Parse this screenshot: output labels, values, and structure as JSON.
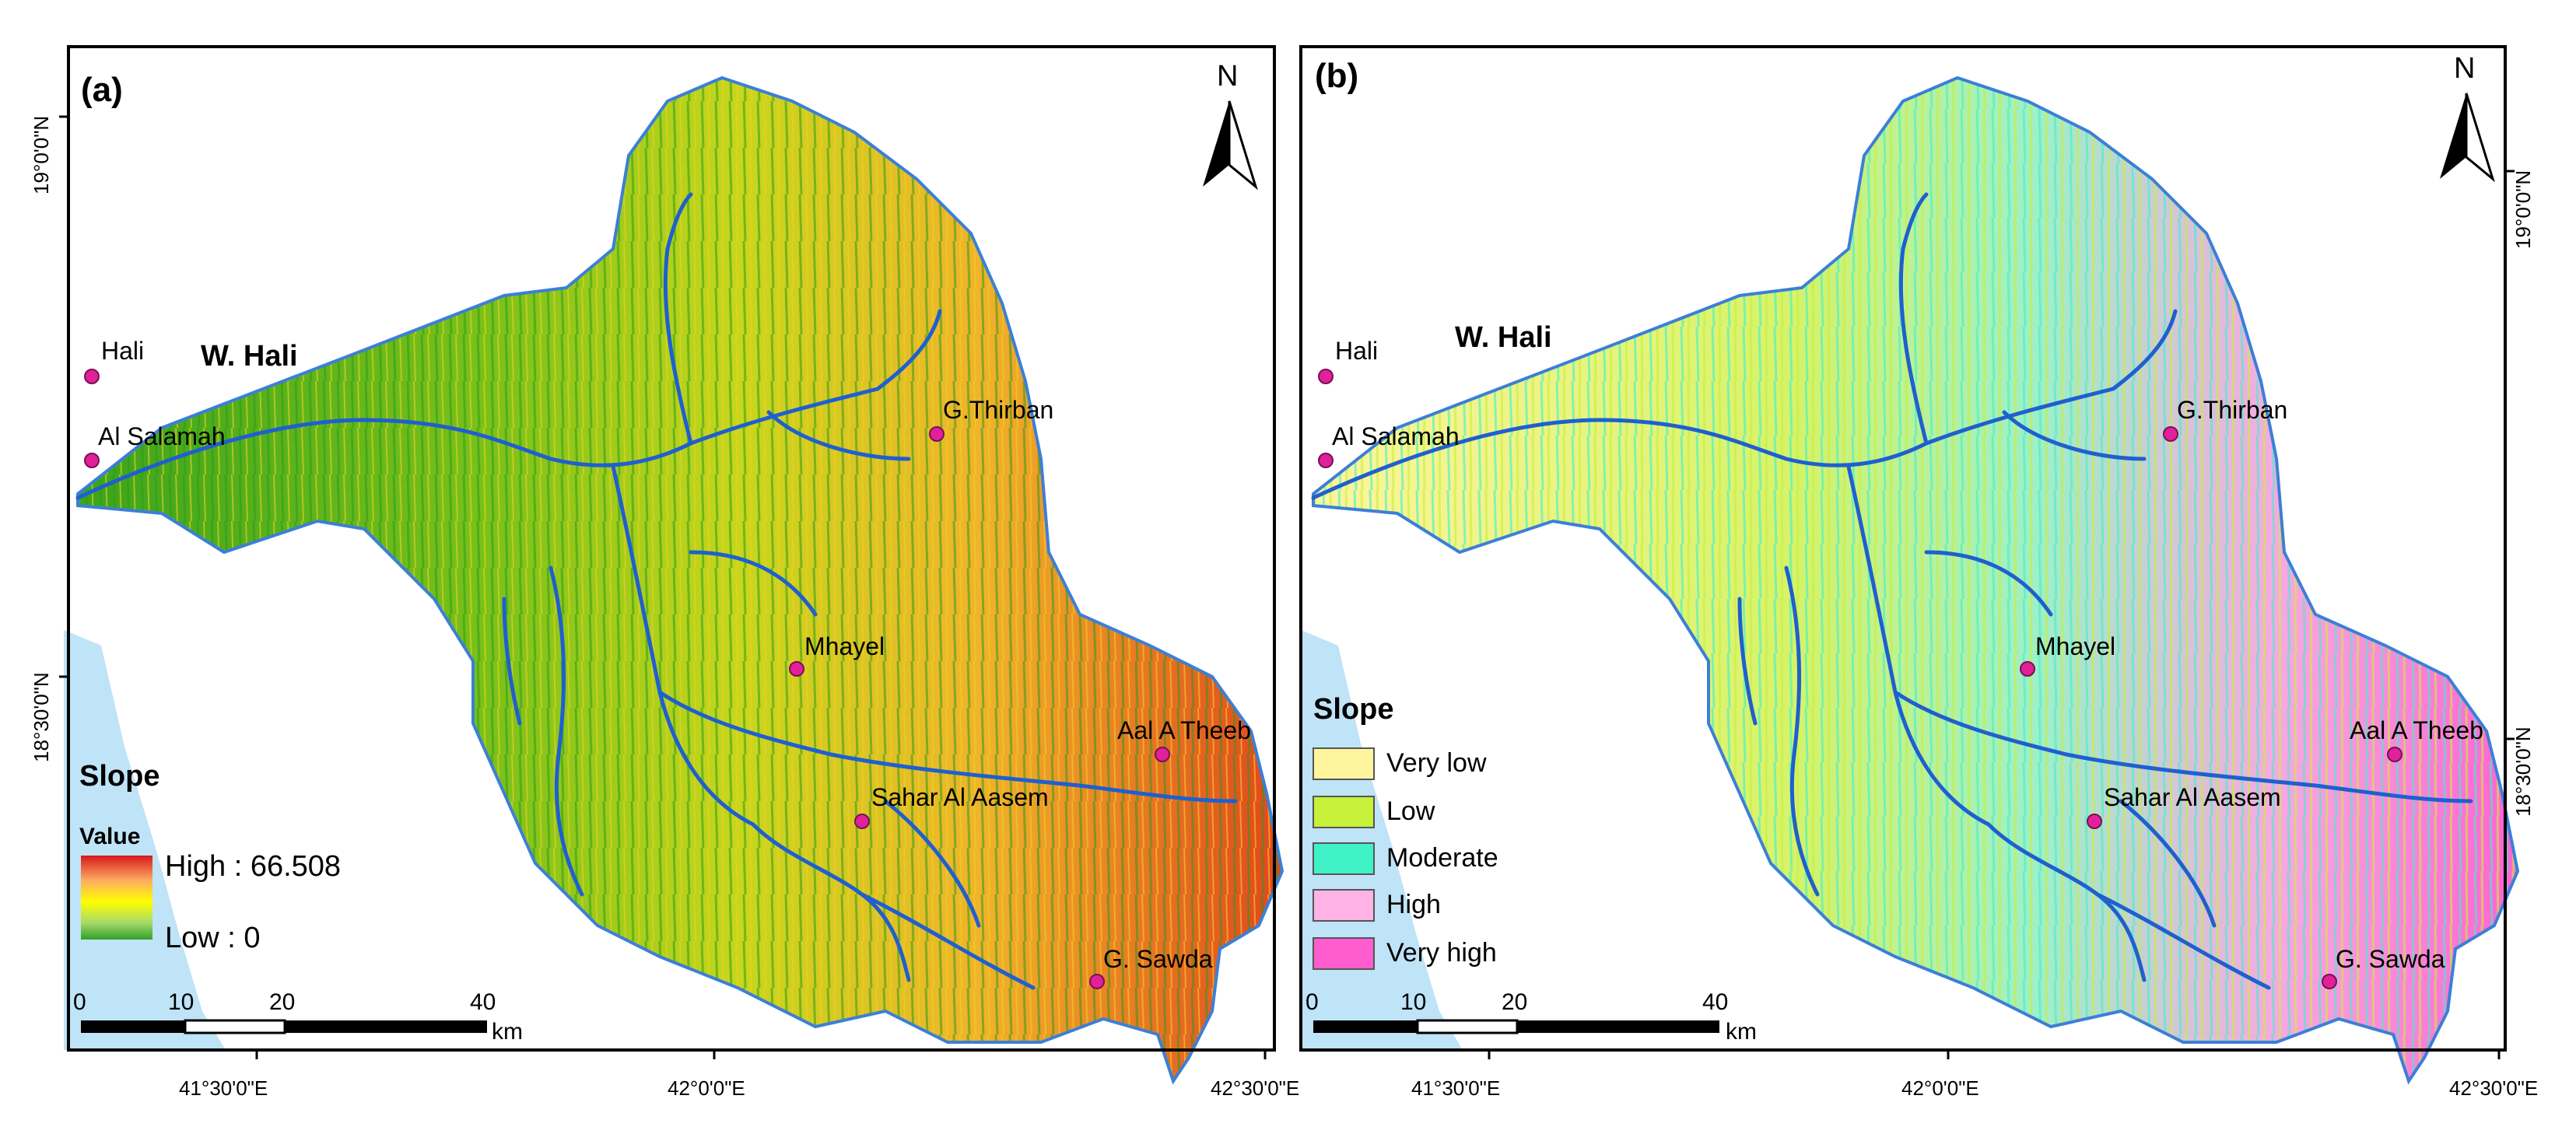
{
  "panels": [
    {
      "id": "a",
      "label": "(a)",
      "north": "N",
      "lat_left": [
        "19°0'0\"N",
        "18°30'0\"N"
      ],
      "lon_bottom": [
        "41°30'0\"E",
        "42°0'0\"E",
        "42°30'0\"E"
      ],
      "places": [
        "Hali",
        "Al Salamah",
        "G.Thirban",
        "Mhayel",
        "Aal A Theeb",
        "Sahar Al Aasem",
        "G. Sawda"
      ],
      "wadi_label": "W. Hali",
      "legend": {
        "title": "Slope",
        "subtitle": "Value",
        "high": "High : 66.508",
        "low": "Low : 0",
        "ramp_colors": [
          "#d7191c",
          "#fdae61",
          "#ffff00",
          "#a6d96a",
          "#33a02c"
        ]
      },
      "scale": {
        "ticks": [
          "0",
          "10",
          "20",
          "40"
        ],
        "unit": "km"
      }
    },
    {
      "id": "b",
      "label": "(b)",
      "north": "N",
      "lat_right": [
        "19°0'0\"N",
        "18°30'0\"N"
      ],
      "lon_bottom": [
        "41°30'0\"E",
        "42°0'0\"E",
        "42°30'0\"E"
      ],
      "places": [
        "Hali",
        "Al Salamah",
        "G.Thirban",
        "Mhayel",
        "Aal A Theeb",
        "Sahar Al Aasem",
        "G. Sawda"
      ],
      "wadi_label": "W. Hali",
      "legend": {
        "title": "Slope",
        "classes": [
          {
            "label": "Very low",
            "color": "#fff59d"
          },
          {
            "label": "Low",
            "color": "#c6f03a"
          },
          {
            "label": "Moderate",
            "color": "#3ff2c6"
          },
          {
            "label": "High",
            "color": "#ffb3e6"
          },
          {
            "label": "Very high",
            "color": "#ff5ccf"
          }
        ]
      },
      "scale": {
        "ticks": [
          "0",
          "10",
          "20",
          "40"
        ],
        "unit": "km"
      }
    }
  ],
  "colors": {
    "river": "#1f5fd0",
    "sea": "#bfe3f7",
    "place_marker": "#e0219a"
  }
}
